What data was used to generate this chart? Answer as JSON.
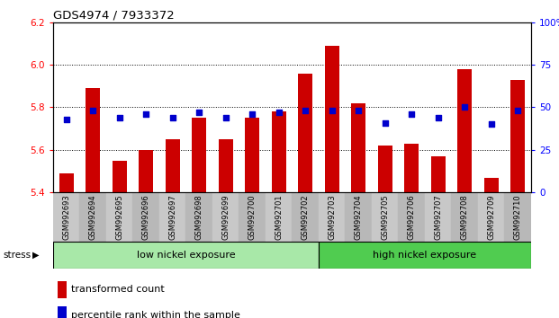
{
  "title": "GDS4974 / 7933372",
  "samples": [
    "GSM992693",
    "GSM992694",
    "GSM992695",
    "GSM992696",
    "GSM992697",
    "GSM992698",
    "GSM992699",
    "GSM992700",
    "GSM992701",
    "GSM992702",
    "GSM992703",
    "GSM992704",
    "GSM992705",
    "GSM992706",
    "GSM992707",
    "GSM992708",
    "GSM992709",
    "GSM992710"
  ],
  "red_values": [
    5.49,
    5.89,
    5.55,
    5.6,
    5.65,
    5.75,
    5.65,
    5.75,
    5.78,
    5.96,
    6.09,
    5.82,
    5.62,
    5.63,
    5.57,
    5.98,
    5.47,
    5.93
  ],
  "blue_pct": [
    43,
    48,
    44,
    46,
    44,
    47,
    44,
    46,
    47,
    48,
    48,
    48,
    41,
    46,
    44,
    50,
    40,
    48
  ],
  "ymin": 5.4,
  "ymax": 6.2,
  "yticks_left": [
    5.4,
    5.6,
    5.8,
    6.0,
    6.2
  ],
  "yticks_right": [
    0,
    25,
    50,
    75,
    100
  ],
  "bar_color": "#cc0000",
  "dot_color": "#0000cc",
  "tick_area_color": "#c8c8c8",
  "low_group_label": "low nickel exposure",
  "high_group_label": "high nickel exposure",
  "low_group_color": "#a8e8a8",
  "high_group_color": "#50cc50",
  "stress_label": "stress",
  "legend_bar_label": "transformed count",
  "legend_dot_label": "percentile rank within the sample",
  "low_count": 10,
  "high_count": 8
}
